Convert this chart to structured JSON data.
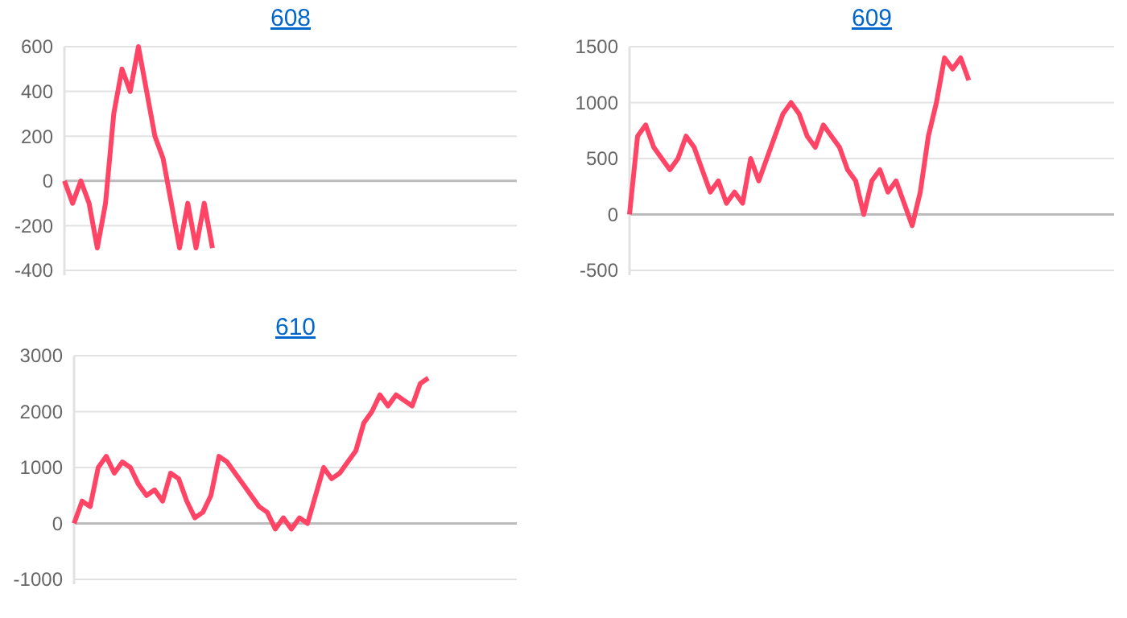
{
  "chart_data": [
    {
      "type": "line",
      "title": "608",
      "categories": [
        null,
        null,
        null,
        null,
        null,
        null,
        null,
        null,
        null,
        null,
        null,
        null,
        null,
        null,
        null,
        null,
        null,
        null,
        null,
        null,
        null,
        null,
        null,
        null,
        null,
        null,
        null,
        null,
        null,
        null,
        null,
        null,
        null,
        null,
        null,
        null,
        null,
        null,
        null,
        null,
        null,
        null,
        null,
        null,
        null,
        null,
        null,
        null,
        null,
        null,
        null,
        null,
        null,
        null,
        null,
        null
      ],
      "series": [
        {
          "color": "#ff4466",
          "values": [
            0,
            -100,
            0,
            -100,
            -300,
            -100,
            300,
            500,
            400,
            600,
            400,
            200,
            100,
            -100,
            -300,
            -100,
            -300,
            -100,
            -300,
            null,
            null,
            null,
            null,
            null,
            null,
            null,
            null,
            null,
            null,
            null,
            null,
            null,
            null,
            null,
            null,
            null,
            null,
            null,
            null,
            null,
            null,
            null,
            null,
            null,
            null,
            null,
            null,
            null,
            null,
            null,
            null,
            null,
            null,
            null,
            null,
            null
          ]
        }
      ],
      "ylim": [
        -400,
        600
      ],
      "yticks": [
        -400,
        -200,
        0,
        200,
        400,
        600
      ],
      "grid": "y",
      "tick_labels": "y",
      "marker": "none"
    },
    {
      "type": "line",
      "title": "609",
      "categories": [
        null,
        null,
        null,
        null,
        null,
        null,
        null,
        null,
        null,
        null,
        null,
        null,
        null,
        null,
        null,
        null,
        null,
        null,
        null,
        null,
        null,
        null,
        null,
        null,
        null,
        null,
        null,
        null,
        null,
        null,
        null,
        null,
        null,
        null,
        null,
        null,
        null,
        null,
        null,
        null,
        null,
        null,
        null,
        null,
        null,
        null,
        null,
        null,
        null,
        null,
        null,
        null,
        null,
        null,
        null,
        null,
        null,
        null,
        null,
        null,
        null
      ],
      "series": [
        {
          "color": "#ff4466",
          "values": [
            0,
            700,
            800,
            600,
            500,
            400,
            500,
            700,
            600,
            400,
            200,
            300,
            100,
            200,
            100,
            500,
            300,
            500,
            700,
            900,
            1000,
            900,
            700,
            600,
            800,
            700,
            600,
            400,
            300,
            0,
            300,
            400,
            200,
            300,
            100,
            -100,
            200,
            700,
            1000,
            1400,
            1300,
            1400,
            1200,
            null,
            null,
            null,
            null,
            null,
            null,
            null,
            null,
            null,
            null,
            null,
            null,
            null,
            null,
            null,
            null,
            null,
            null
          ]
        }
      ],
      "ylim": [
        -500,
        1500
      ],
      "yticks": [
        -500,
        0,
        500,
        1000,
        1500
      ],
      "grid": "y",
      "tick_labels": "y",
      "marker": "none"
    },
    {
      "type": "line",
      "title": "610",
      "categories": [
        null,
        null,
        null,
        null,
        null,
        null,
        null,
        null,
        null,
        null,
        null,
        null,
        null,
        null,
        null,
        null,
        null,
        null,
        null,
        null,
        null,
        null,
        null,
        null,
        null,
        null,
        null,
        null,
        null,
        null,
        null,
        null,
        null,
        null,
        null,
        null,
        null,
        null,
        null,
        null,
        null,
        null,
        null,
        null,
        null,
        null,
        null,
        null,
        null,
        null,
        null,
        null,
        null,
        null,
        null,
        null
      ],
      "series": [
        {
          "color": "#ff4466",
          "values": [
            0,
            400,
            300,
            1000,
            1200,
            900,
            1100,
            1000,
            700,
            500,
            600,
            400,
            900,
            800,
            400,
            100,
            200,
            500,
            1200,
            1100,
            900,
            700,
            500,
            300,
            200,
            -100,
            100,
            -100,
            100,
            0,
            500,
            1000,
            800,
            900,
            1100,
            1300,
            1800,
            2000,
            2300,
            2100,
            2300,
            2200,
            2100,
            2500,
            2600,
            null,
            null,
            null,
            null,
            null,
            null,
            null,
            null,
            null,
            null,
            null
          ]
        }
      ],
      "ylim": [
        -1000,
        3000
      ],
      "yticks": [
        -1000,
        0,
        1000,
        2000,
        3000
      ],
      "grid": "y",
      "tick_labels": "y",
      "marker": "none"
    }
  ]
}
